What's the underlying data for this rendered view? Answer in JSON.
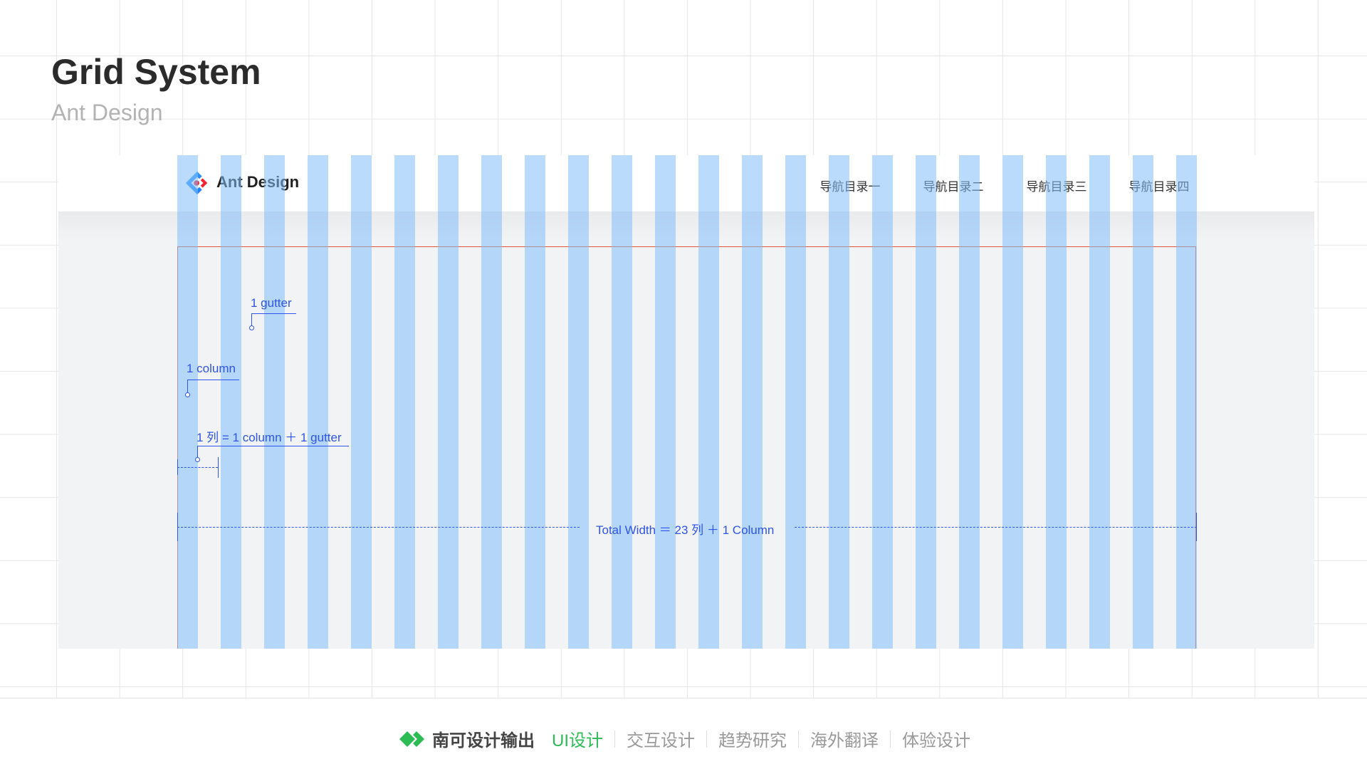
{
  "title": "Grid System",
  "subtitle": "Ant Design",
  "mock": {
    "brand": "Ant Design",
    "nav": [
      "导航目录一",
      "导航目录二",
      "导航目录三",
      "导航目录四"
    ],
    "column_count": 24,
    "column_color": "#b8dcfc"
  },
  "annotations": {
    "gutter": "1 gutter",
    "column": "1 column",
    "unit": "1 列 = 1 column ＋ 1 gutter",
    "total": "Total Width ＝ 23 列 ＋ 1 Column",
    "color": "#2f54eb"
  },
  "footer": {
    "brand": "南可设计输出",
    "active": "UI设计",
    "items": [
      "交互设计",
      "趋势研究",
      "海外翻译",
      "体验设计"
    ],
    "accent": "#2dbb55"
  }
}
